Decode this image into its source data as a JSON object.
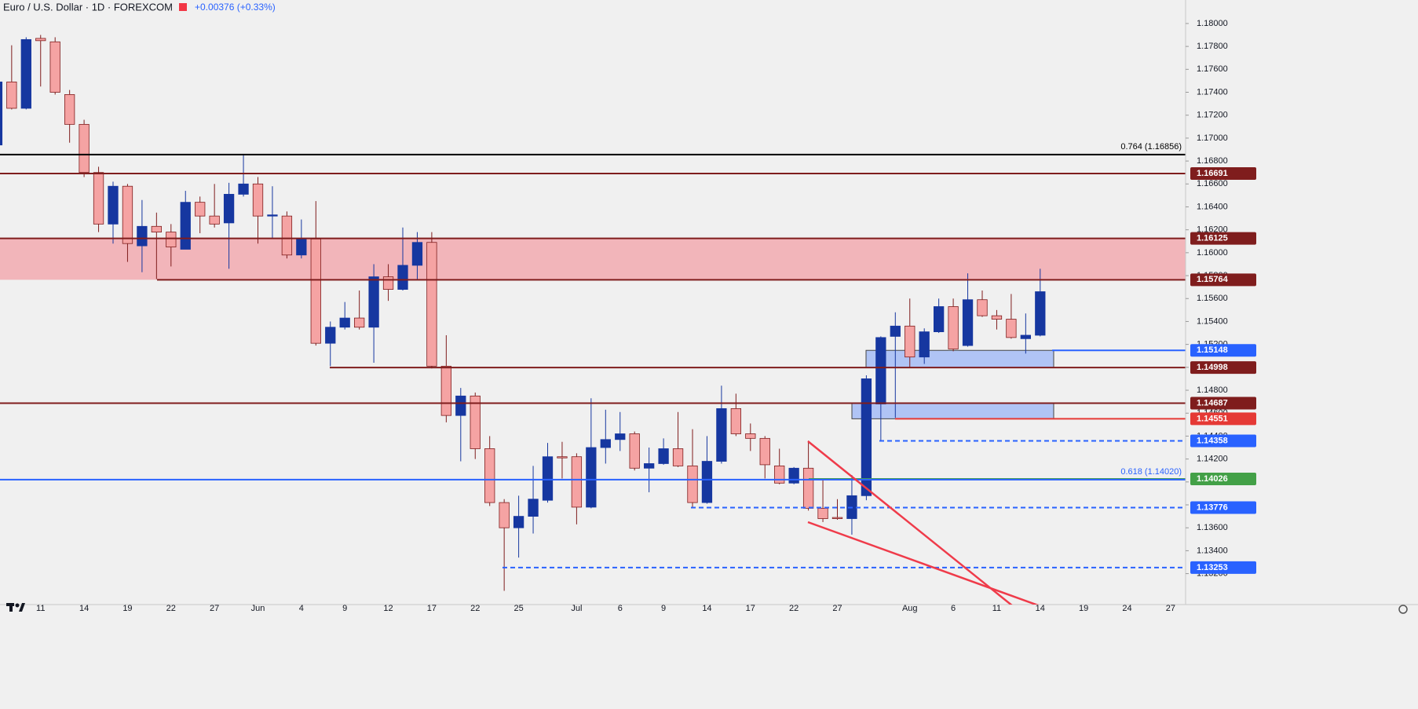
{
  "chart_data": {
    "type": "candlestick",
    "title": "Euro / U.S. Dollar · 1D · FOREXCOM",
    "change": "+0.00376 (+0.33%)",
    "up_color": "#1637a0",
    "down_color": "#f5a3a3",
    "down_border": "#7f1d1d",
    "ylim": [
      1.1293,
      1.18205
    ],
    "yticks": [
      {
        "value": 1.132,
        "label": "1.13200"
      },
      {
        "value": 1.134,
        "label": "1.13400"
      },
      {
        "value": 1.136,
        "label": "1.13600"
      },
      {
        "value": 1.138,
        "label": "1.13800"
      },
      {
        "value": 1.14,
        "label": "1.14000"
      },
      {
        "value": 1.142,
        "label": "1.14200"
      },
      {
        "value": 1.144,
        "label": "1.14400"
      },
      {
        "value": 1.146,
        "label": "1.14600"
      },
      {
        "value": 1.148,
        "label": "1.14800"
      },
      {
        "value": 1.15,
        "label": "1.15000"
      },
      {
        "value": 1.152,
        "label": "1.15200"
      },
      {
        "value": 1.154,
        "label": "1.15400"
      },
      {
        "value": 1.156,
        "label": "1.15600"
      },
      {
        "value": 1.158,
        "label": "1.15800"
      },
      {
        "value": 1.16,
        "label": "1.16000"
      },
      {
        "value": 1.162,
        "label": "1.16200"
      },
      {
        "value": 1.164,
        "label": "1.16400"
      },
      {
        "value": 1.166,
        "label": "1.16600"
      },
      {
        "value": 1.168,
        "label": "1.16800"
      },
      {
        "value": 1.17,
        "label": "1.17000"
      },
      {
        "value": 1.172,
        "label": "1.17200"
      },
      {
        "value": 1.174,
        "label": "1.17400"
      },
      {
        "value": 1.176,
        "label": "1.17600"
      },
      {
        "value": 1.178,
        "label": "1.17800"
      },
      {
        "value": 1.18,
        "label": "1.18000"
      }
    ],
    "categories": [
      null,
      null,
      null,
      "11",
      null,
      null,
      "14",
      null,
      null,
      "19",
      null,
      null,
      "22",
      null,
      null,
      "27",
      null,
      null,
      "Jun",
      null,
      null,
      "4",
      null,
      null,
      "9",
      null,
      null,
      "12",
      null,
      null,
      "17",
      null,
      null,
      "22",
      null,
      null,
      "25",
      null,
      null,
      null,
      "Jul",
      null,
      null,
      "6",
      null,
      null,
      "9",
      null,
      null,
      "14",
      null,
      null,
      "17",
      null,
      null,
      "22",
      null,
      null,
      "27",
      null,
      null,
      null,
      null,
      "Aug",
      null,
      null,
      "6",
      null,
      null,
      "11",
      null,
      null,
      "14",
      null,
      null,
      "19",
      null,
      null,
      "24",
      null,
      null,
      "27"
    ],
    "open": [
      1.1694,
      1.1749,
      1.1726,
      1.1787,
      1.1784,
      1.1738,
      1.1712,
      1.167,
      1.1625,
      1.1658,
      1.1606,
      1.1623,
      1.1618,
      1.1603,
      1.1644,
      1.1632,
      1.1626,
      1.1651,
      1.166,
      1.1632,
      1.1632,
      1.1598,
      1.1612,
      1.1521,
      1.1535,
      1.1543,
      1.1535,
      1.1579,
      1.1568,
      1.1589,
      1.1609,
      1.1501,
      1.1458,
      1.1475,
      1.1429,
      1.1382,
      1.136,
      1.137,
      1.1384,
      1.1422,
      1.1422,
      1.1378,
      1.143,
      1.1437,
      1.1442,
      1.1412,
      1.1416,
      1.1429,
      1.1414,
      1.1382,
      1.1418,
      1.1464,
      1.1442,
      1.1438,
      1.1414,
      1.1399,
      1.1412,
      1.1377,
      1.1369,
      1.1368,
      1.1388,
      1.1468,
      1.1527,
      1.1536,
      1.1509,
      1.1531,
      1.1553,
      1.1519,
      1.1559,
      1.1545,
      1.1542,
      1.1525,
      1.1528,
      null,
      null,
      null,
      null,
      null,
      null,
      null,
      null,
      null
    ],
    "high": [
      1.1752,
      1.1781,
      1.1788,
      1.179,
      1.1788,
      1.1742,
      1.1716,
      1.1675,
      1.1662,
      1.166,
      1.1646,
      1.1635,
      1.1625,
      1.1654,
      1.1649,
      1.166,
      1.1661,
      1.1686,
      1.1666,
      1.1658,
      1.1636,
      1.1629,
      1.1645,
      1.154,
      1.1557,
      1.1567,
      1.159,
      1.159,
      1.1622,
      1.1618,
      1.1618,
      1.1528,
      1.1482,
      1.1478,
      1.144,
      1.1385,
      1.1388,
      1.1414,
      1.1434,
      1.1435,
      1.1425,
      1.1473,
      1.1463,
      1.1461,
      1.1444,
      1.143,
      1.1438,
      1.1461,
      1.1446,
      1.144,
      1.1484,
      1.1477,
      1.1451,
      1.144,
      1.1429,
      1.1413,
      1.1436,
      1.1403,
      1.1385,
      1.1406,
      1.1493,
      1.1527,
      1.1548,
      1.156,
      1.1534,
      1.156,
      1.156,
      1.1582,
      1.1567,
      1.155,
      1.1564,
      1.1547,
      1.1586,
      null,
      null,
      null,
      null,
      null,
      null,
      null,
      null,
      null
    ],
    "low": [
      1.1692,
      1.1725,
      1.1725,
      1.1745,
      1.1738,
      1.1696,
      1.1666,
      1.1618,
      1.1608,
      1.1592,
      1.1583,
      1.1577,
      1.1588,
      1.1603,
      1.1617,
      1.1622,
      1.1586,
      1.1649,
      1.1608,
      1.1612,
      1.1595,
      1.1595,
      1.1519,
      1.1501,
      1.1533,
      1.1533,
      1.1504,
      1.1558,
      1.1567,
      1.1577,
      1.1499,
      1.1452,
      1.1418,
      1.142,
      1.1379,
      1.1305,
      1.1334,
      1.1355,
      1.1382,
      1.1403,
      1.1363,
      1.1377,
      1.1416,
      1.1427,
      1.141,
      1.1391,
      1.1415,
      1.1413,
      1.1377,
      1.1381,
      1.1416,
      1.144,
      1.1427,
      1.1403,
      1.1398,
      1.1398,
      1.1375,
      1.1365,
      1.1367,
      1.1354,
      1.1384,
      1.1436,
      1.1456,
      1.15,
      1.1503,
      1.153,
      1.1514,
      1.1518,
      1.1544,
      1.1533,
      1.1525,
      1.1512,
      1.1527,
      null,
      null,
      null,
      null,
      null,
      null,
      null,
      null,
      null
    ],
    "close": [
      1.1749,
      1.1726,
      1.1786,
      1.1785,
      1.174,
      1.1712,
      1.167,
      1.1625,
      1.1658,
      1.1608,
      1.1623,
      1.1618,
      1.1605,
      1.1644,
      1.1632,
      1.1625,
      1.1651,
      1.166,
      1.1632,
      1.1633,
      1.1598,
      1.1612,
      1.1521,
      1.1535,
      1.1543,
      1.1535,
      1.1579,
      1.1568,
      1.1589,
      1.1609,
      1.1501,
      1.1458,
      1.1475,
      1.1429,
      1.1382,
      1.136,
      1.137,
      1.1385,
      1.1422,
      1.1421,
      1.1378,
      1.143,
      1.1437,
      1.1442,
      1.1412,
      1.1416,
      1.1429,
      1.1414,
      1.1382,
      1.1418,
      1.1464,
      1.1442,
      1.1438,
      1.1415,
      1.1399,
      1.1412,
      1.1377,
      1.1368,
      1.1368,
      1.1388,
      1.149,
      1.1526,
      1.1536,
      1.1509,
      1.1531,
      1.1553,
      1.1516,
      1.1559,
      1.1545,
      1.1542,
      1.1526,
      1.1528,
      1.1566,
      null,
      null,
      null,
      null,
      null,
      null,
      null,
      null,
      null
    ],
    "levels": [
      {
        "value": 1.16856,
        "color": "#000000",
        "style": "solid",
        "label": "0.764 (1.16856)"
      },
      {
        "value": 1.16691,
        "color": "#7f1d1d",
        "style": "solid"
      },
      {
        "value": 1.16125,
        "color": "#7f1d1d",
        "style": "solid"
      },
      {
        "value": 1.15764,
        "color": "#7f1d1d",
        "style": "solid"
      },
      {
        "value": 1.15148,
        "color": "#2962ff",
        "style": "solid"
      },
      {
        "value": 1.14998,
        "color": "#7f1d1d",
        "style": "solid"
      },
      {
        "value": 1.14687,
        "color": "#7f1d1d",
        "style": "solid"
      },
      {
        "value": 1.14551,
        "color": "#e53935",
        "style": "solid"
      },
      {
        "value": 1.14358,
        "color": "#2962ff",
        "style": "dashed"
      },
      {
        "value": 1.14026,
        "color": "#43a047",
        "style": "solid"
      },
      {
        "value": 1.1402,
        "color": "#2962ff",
        "style": "solid",
        "label": "0.618 (1.14020)"
      },
      {
        "value": 1.13776,
        "color": "#2962ff",
        "style": "dashed"
      },
      {
        "value": 1.13253,
        "color": "#2962ff",
        "style": "dashed"
      }
    ]
  }
}
